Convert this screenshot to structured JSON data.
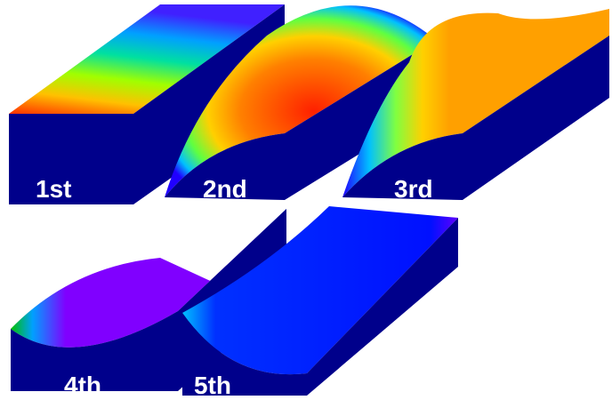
{
  "labels": [
    "1st",
    "2nd",
    "3rd",
    "4th",
    "5th"
  ]
}
